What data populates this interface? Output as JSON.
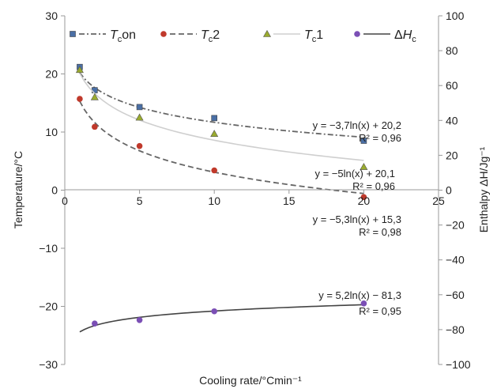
{
  "chart_data": {
    "type": "scatter",
    "xlabel": "Cooling rate/°Cmin⁻¹",
    "ylabel_left": "Temperature/°C",
    "ylabel_right": "Enthalpy ΔH/Jg⁻¹",
    "xlim": [
      0,
      25
    ],
    "ylim_left": [
      -30,
      30
    ],
    "ylim_right": [
      -100,
      100
    ],
    "x_ticks": [
      "0",
      "5",
      "10",
      "15",
      "20",
      "25"
    ],
    "y_left_ticks": [
      "−30",
      "−20",
      "−10",
      "0",
      "10",
      "20",
      "30"
    ],
    "y_right_ticks": [
      "−100",
      "−80",
      "−60",
      "−40",
      "−20",
      "0",
      "20",
      "40",
      "60",
      "80",
      "100"
    ],
    "grid": false,
    "legend_position": "top",
    "series": [
      {
        "name": "Tcon",
        "axis": "left",
        "color": "#4a6fa5",
        "marker": "square",
        "line_style": "dashdot",
        "x": [
          1,
          2,
          5,
          10,
          20
        ],
        "y": [
          21.2,
          17.2,
          14.3,
          12.4,
          8.5
        ],
        "trend": {
          "a": -3.7,
          "b": 20.2,
          "x_from": 1,
          "x_to": 20
        },
        "equation": "y = −3,7ln(x) + 20,2",
        "r2": "R² = 0,96"
      },
      {
        "name": "Tc2",
        "axis": "left",
        "color": "#c0392b",
        "marker": "circle",
        "line_style": "dashed",
        "x": [
          1,
          2,
          5,
          10,
          20
        ],
        "y": [
          15.7,
          10.9,
          7.6,
          3.4,
          -1.2
        ],
        "trend": {
          "a": -5.3,
          "b": 15.3,
          "x_from": 1,
          "x_to": 20
        },
        "equation": "y = −5,3ln(x) + 15,3",
        "r2": "R² = 0,98"
      },
      {
        "name": "Tc1",
        "axis": "left",
        "color": "#9aab2e",
        "marker": "triangle",
        "line_style": "solid-light",
        "x": [
          1,
          2,
          5,
          10,
          20
        ],
        "y": [
          20.7,
          16.0,
          12.5,
          9.7,
          4.0
        ],
        "trend": {
          "a": -5,
          "b": 20.1,
          "x_from": 1,
          "x_to": 20
        },
        "equation": "y = −5ln(x) + 20,1",
        "r2": "R² = 0,96"
      },
      {
        "name": "ΔHc",
        "axis": "right",
        "color": "#7b4fb5",
        "marker": "circle",
        "line_style": "solid",
        "x": [
          2,
          5,
          10,
          20
        ],
        "y": [
          -76.5,
          -74.5,
          -69.5,
          -65.0
        ],
        "trend": {
          "a": 5.2,
          "b": -81.3,
          "x_from": 1,
          "x_to": 20
        },
        "equation": "y = 5,2ln(x) − 81,3",
        "r2": "R² = 0,95"
      }
    ]
  }
}
